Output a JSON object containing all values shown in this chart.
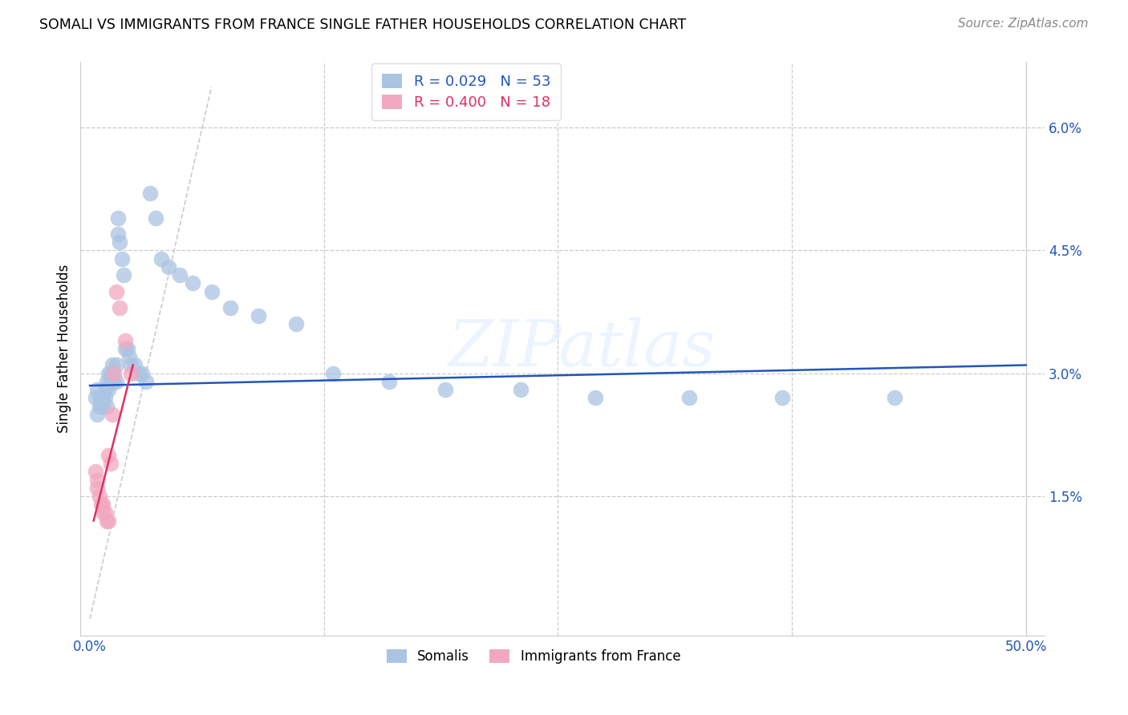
{
  "title": "SOMALI VS IMMIGRANTS FROM FRANCE SINGLE FATHER HOUSEHOLDS CORRELATION CHART",
  "source": "Source: ZipAtlas.com",
  "ylabel": "Single Father Households",
  "xlim": [
    0.0,
    0.5
  ],
  "ylim": [
    0.0,
    0.065
  ],
  "watermark": "ZIPatlas",
  "blue_color": "#aac4e2",
  "pink_color": "#f2a8c0",
  "line_blue": "#2255bb",
  "line_pink": "#e03060",
  "diag_color": "#cccccc",
  "grid_color": "#cccccc",
  "somali_x": [
    0.003,
    0.004,
    0.004,
    0.005,
    0.005,
    0.006,
    0.006,
    0.007,
    0.007,
    0.008,
    0.008,
    0.009,
    0.009,
    0.01,
    0.01,
    0.011,
    0.011,
    0.012,
    0.012,
    0.013,
    0.014,
    0.014,
    0.015,
    0.015,
    0.016,
    0.017,
    0.018,
    0.019,
    0.02,
    0.021,
    0.022,
    0.024,
    0.026,
    0.028,
    0.03,
    0.032,
    0.035,
    0.038,
    0.042,
    0.048,
    0.055,
    0.065,
    0.075,
    0.09,
    0.11,
    0.13,
    0.16,
    0.19,
    0.23,
    0.27,
    0.32,
    0.37,
    0.43
  ],
  "somali_y": [
    0.027,
    0.028,
    0.025,
    0.026,
    0.027,
    0.026,
    0.027,
    0.027,
    0.026,
    0.027,
    0.028,
    0.026,
    0.029,
    0.028,
    0.03,
    0.029,
    0.03,
    0.031,
    0.03,
    0.029,
    0.031,
    0.029,
    0.049,
    0.047,
    0.046,
    0.044,
    0.042,
    0.033,
    0.033,
    0.032,
    0.031,
    0.031,
    0.03,
    0.03,
    0.029,
    0.052,
    0.049,
    0.044,
    0.043,
    0.042,
    0.041,
    0.04,
    0.038,
    0.037,
    0.036,
    0.03,
    0.029,
    0.028,
    0.028,
    0.027,
    0.027,
    0.027,
    0.027
  ],
  "france_x": [
    0.003,
    0.004,
    0.004,
    0.005,
    0.006,
    0.007,
    0.007,
    0.008,
    0.009,
    0.01,
    0.01,
    0.011,
    0.012,
    0.013,
    0.014,
    0.016,
    0.019,
    0.022
  ],
  "france_y": [
    0.018,
    0.017,
    0.016,
    0.015,
    0.014,
    0.014,
    0.013,
    0.013,
    0.012,
    0.012,
    0.02,
    0.019,
    0.025,
    0.03,
    0.04,
    0.038,
    0.034,
    0.03
  ],
  "blue_line_x": [
    0.0,
    0.5
  ],
  "blue_line_y": [
    0.0285,
    0.031
  ],
  "pink_line_x": [
    0.002,
    0.023
  ],
  "pink_line_y": [
    0.012,
    0.031
  ],
  "diag_line_x": [
    0.0,
    0.065
  ],
  "diag_line_y": [
    0.0,
    0.065
  ],
  "hgrid_vals": [
    0.015,
    0.03,
    0.045,
    0.06
  ],
  "vgrid_vals": [
    0.125,
    0.25,
    0.375
  ],
  "ytick_labels": [
    "1.5%",
    "3.0%",
    "4.5%",
    "6.0%"
  ],
  "ytick_vals": [
    0.015,
    0.03,
    0.045,
    0.06
  ],
  "xtick_vals": [
    0.0,
    0.5
  ],
  "xtick_labels": [
    "0.0%",
    "50.0%"
  ]
}
